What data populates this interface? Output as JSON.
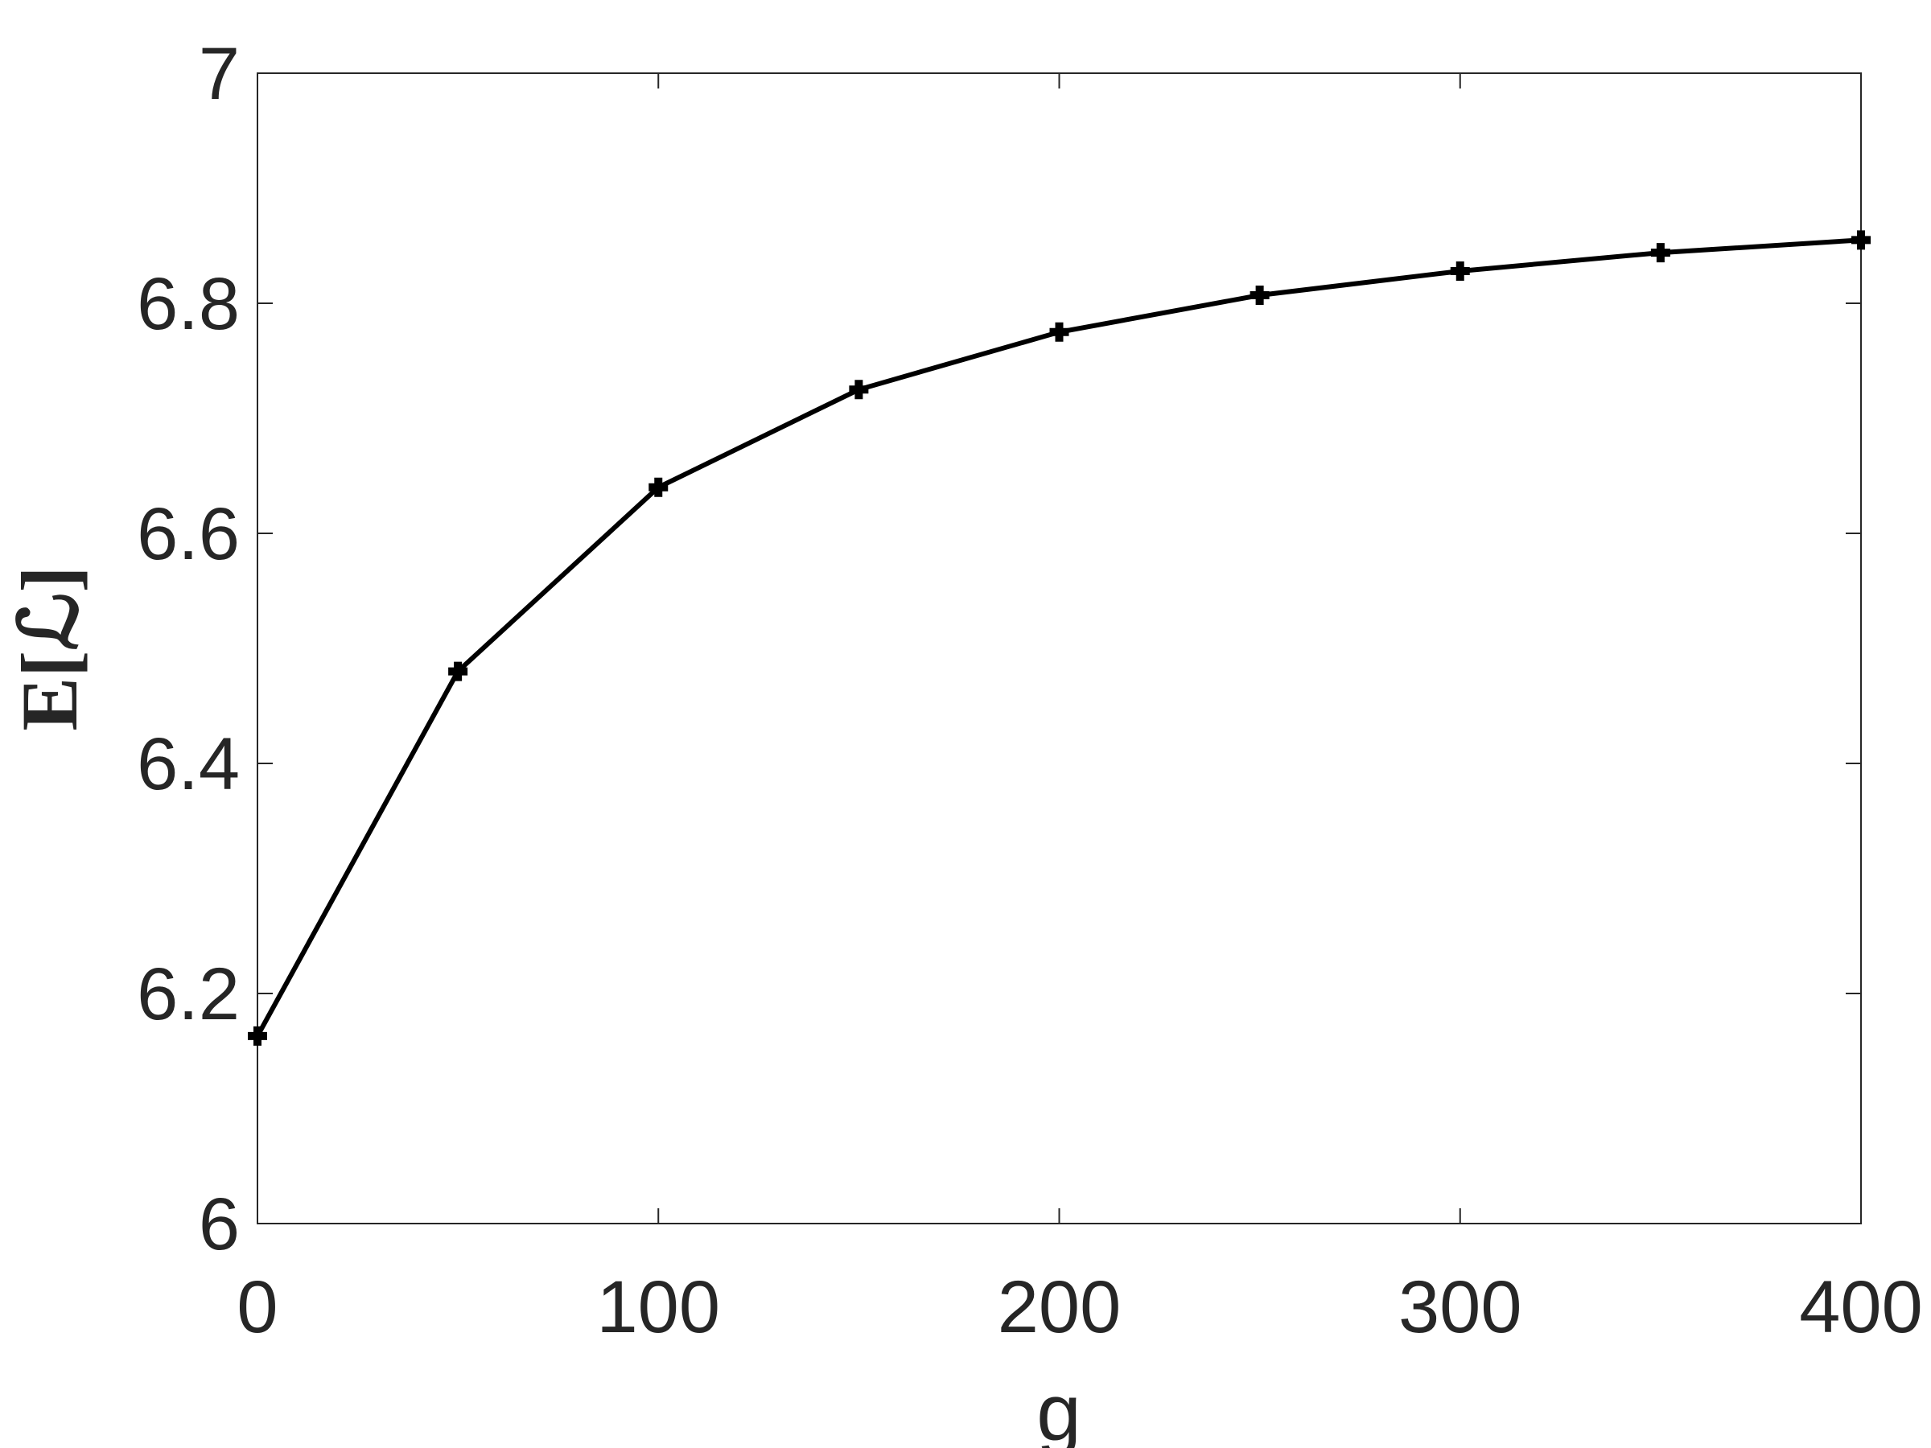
{
  "chart_data": {
    "type": "line",
    "xlabel": "g",
    "ylabel": "E[ℒ]",
    "x": [
      0,
      50,
      100,
      150,
      200,
      250,
      300,
      350,
      400
    ],
    "series": [
      {
        "color": "#000000",
        "values": [
          6.163,
          6.48,
          6.64,
          6.725,
          6.775,
          6.807,
          6.828,
          6.844,
          6.855
        ]
      }
    ],
    "xlim": [
      0,
      400
    ],
    "xticks": [
      0,
      100,
      200,
      300,
      400
    ],
    "ylim": [
      6,
      7
    ],
    "yticks": [
      6,
      6.2,
      6.4,
      6.6,
      6.8,
      7
    ],
    "grid": false
  }
}
